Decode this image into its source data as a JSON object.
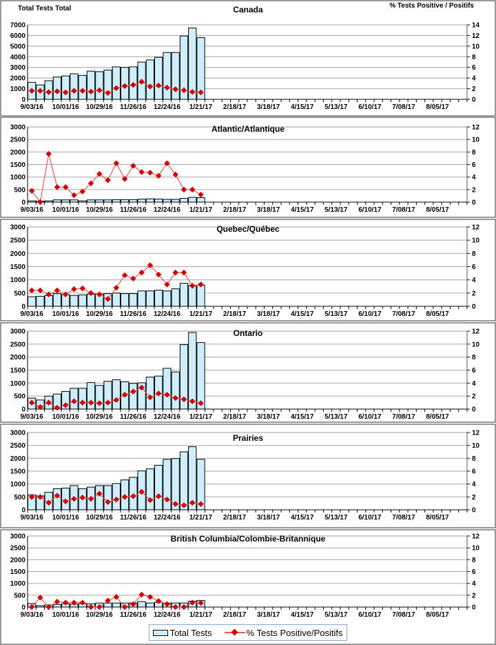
{
  "chart_data": {
    "type": "bar+line",
    "left_axis_header": "Total Tests Total",
    "right_axis_header": "% Tests Positive / Positifs",
    "x_tick_labels": [
      "9/03/16",
      "10/01/16",
      "10/29/16",
      "11/26/16",
      "12/24/16",
      "1/21/17",
      "2/18/17",
      "3/18/17",
      "4/15/17",
      "5/13/17",
      "6/10/17",
      "7/08/17",
      "8/05/17"
    ],
    "weeks_on_axis": 52,
    "legend": {
      "bars": "Total Tests",
      "line": "% Tests Positive/Positifs"
    },
    "colors": {
      "bar_fill": "#cfeefc",
      "bar_stroke": "#000000",
      "line": "#e05a5a",
      "marker": "#d40000",
      "grid": "#b0b0b0"
    },
    "panels": [
      {
        "title": "Canada",
        "ylim_left": [
          0,
          7000
        ],
        "left_ticks": [
          0,
          1000,
          2000,
          3000,
          4000,
          5000,
          6000,
          7000
        ],
        "ylim_right": [
          0,
          14
        ],
        "right_ticks": [
          0,
          2,
          4,
          6,
          8,
          10,
          12,
          14
        ],
        "total_tests": [
          1600,
          1350,
          1750,
          2100,
          2200,
          2400,
          2250,
          2650,
          2600,
          2750,
          3050,
          3000,
          3050,
          3500,
          3700,
          3950,
          4400,
          4400,
          5950,
          6700,
          5800
        ],
        "pct_positive": [
          1.6,
          1.6,
          1.35,
          1.5,
          1.3,
          1.6,
          1.6,
          1.45,
          1.7,
          1.2,
          2.1,
          2.5,
          2.7,
          3.3,
          2.4,
          2.6,
          2.2,
          1.9,
          1.7,
          1.4,
          1.3
        ]
      },
      {
        "title": "Atlantic/Atlantique",
        "ylim_left": [
          0,
          3000
        ],
        "left_ticks": [
          0,
          500,
          1000,
          1500,
          2000,
          2500,
          3000
        ],
        "ylim_right": [
          0,
          12
        ],
        "right_ticks": [
          0,
          2,
          4,
          6,
          8,
          10,
          12
        ],
        "total_tests": [
          50,
          40,
          50,
          90,
          90,
          90,
          50,
          90,
          90,
          90,
          100,
          100,
          100,
          120,
          130,
          120,
          110,
          110,
          150,
          190,
          180
        ],
        "pct_positive": [
          1.8,
          0,
          7.7,
          2.4,
          2.4,
          1.1,
          1.7,
          3.0,
          4.5,
          3.5,
          6.2,
          3.7,
          5.8,
          4.8,
          4.7,
          4.2,
          6.2,
          4.4,
          2.0,
          2.0,
          1.2
        ]
      },
      {
        "title": "Quebec/Québec",
        "ylim_left": [
          0,
          3000
        ],
        "left_ticks": [
          0,
          500,
          1000,
          1500,
          2000,
          2500,
          3000
        ],
        "ylim_right": [
          0,
          12
        ],
        "right_ticks": [
          0,
          2,
          4,
          6,
          8,
          10,
          12
        ],
        "total_tests": [
          360,
          380,
          410,
          480,
          440,
          410,
          430,
          460,
          460,
          480,
          500,
          480,
          480,
          580,
          580,
          610,
          580,
          660,
          870,
          790,
          800
        ],
        "pct_positive": [
          2.4,
          2.4,
          1.8,
          2.4,
          1.8,
          2.6,
          2.7,
          2.0,
          1.8,
          1.1,
          2.8,
          4.7,
          4.2,
          5.1,
          6.2,
          4.8,
          3.3,
          5.1,
          5.1,
          3.1,
          3.3
        ]
      },
      {
        "title": "Ontario",
        "ylim_left": [
          0,
          3000
        ],
        "left_ticks": [
          0,
          500,
          1000,
          1500,
          2000,
          2500,
          3000
        ],
        "ylim_right": [
          0,
          12
        ],
        "right_ticks": [
          0,
          2,
          4,
          6,
          8,
          10,
          12
        ],
        "total_tests": [
          420,
          350,
          500,
          580,
          680,
          800,
          800,
          1020,
          910,
          1070,
          1130,
          1050,
          990,
          1010,
          1230,
          1270,
          1570,
          1430,
          2480,
          2950,
          2560
        ],
        "pct_positive": [
          1.0,
          0.3,
          1.0,
          0.2,
          0.6,
          1.2,
          1.0,
          1.0,
          0.9,
          1.0,
          1.4,
          2.2,
          2.7,
          3.3,
          1.8,
          2.4,
          2.2,
          1.7,
          1.5,
          1.2,
          0.9
        ]
      },
      {
        "title": "Prairies",
        "ylim_left": [
          0,
          3000
        ],
        "left_ticks": [
          0,
          500,
          1000,
          1500,
          2000,
          2500,
          3000
        ],
        "ylim_right": [
          0,
          12
        ],
        "right_ticks": [
          0,
          2,
          4,
          6,
          8,
          10,
          12
        ],
        "total_tests": [
          580,
          540,
          680,
          820,
          840,
          940,
          820,
          880,
          940,
          940,
          1020,
          1160,
          1260,
          1510,
          1590,
          1730,
          1960,
          1990,
          2250,
          2450,
          1960
        ],
        "pct_positive": [
          2.0,
          2.0,
          1.1,
          2.2,
          1.3,
          1.7,
          1.9,
          1.7,
          2.5,
          1.2,
          1.6,
          2.0,
          2.1,
          2.8,
          1.5,
          2.1,
          1.6,
          0.9,
          0.7,
          1.1,
          0.9
        ]
      },
      {
        "title": "British Columbia/Colombie-Britannique",
        "ylim_left": [
          0,
          3000
        ],
        "left_ticks": [
          0,
          500,
          1000,
          1500,
          2000,
          2500,
          3000
        ],
        "ylim_right": [
          0,
          12
        ],
        "right_ticks": [
          0,
          2,
          4,
          6,
          8,
          10,
          12
        ],
        "total_tests": [
          150,
          60,
          90,
          110,
          140,
          120,
          150,
          140,
          170,
          170,
          170,
          170,
          170,
          230,
          170,
          200,
          170,
          170,
          170,
          250,
          280
        ],
        "pct_positive": [
          0,
          1.6,
          0,
          0.9,
          0.75,
          0.75,
          0.75,
          0,
          0,
          1.1,
          1.7,
          0,
          0.5,
          2.1,
          1.7,
          1.0,
          0.5,
          0,
          0,
          0.75,
          0.7
        ]
      }
    ]
  }
}
